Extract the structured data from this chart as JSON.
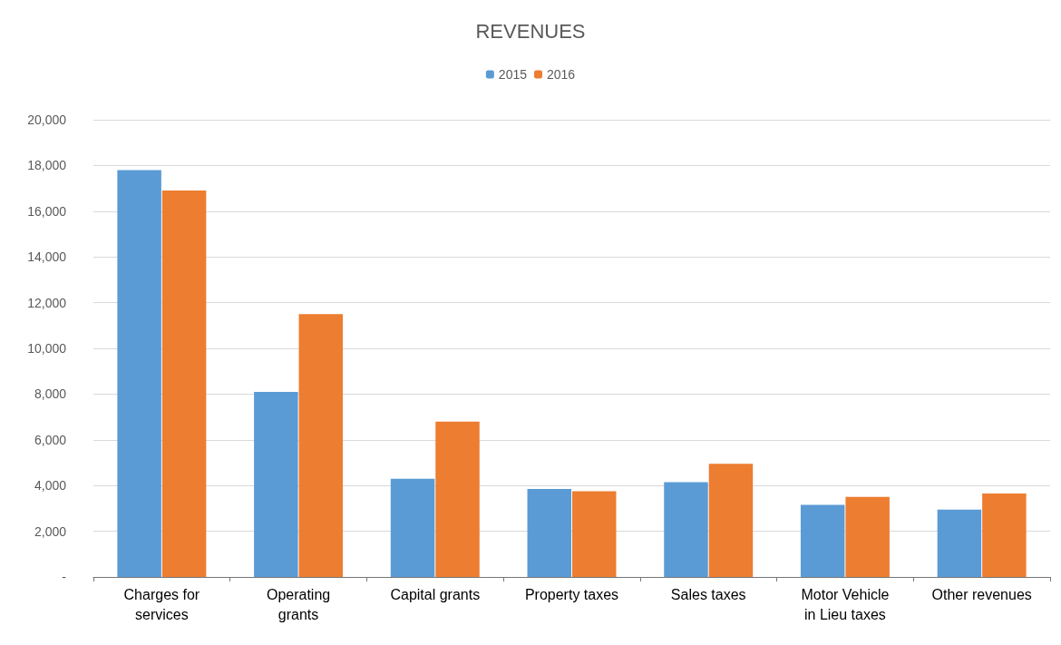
{
  "chart_data": {
    "type": "bar",
    "title": "REVENUES",
    "categories": [
      "Charges for\nservices",
      "Operating\ngrants",
      "Capital grants",
      "Property taxes",
      "Sales taxes",
      "Motor Vehicle\nin Lieu taxes",
      "Other revenues"
    ],
    "series": [
      {
        "name": "2015",
        "color": "#5b9bd5",
        "values": [
          17800,
          8100,
          4300,
          3850,
          4150,
          3150,
          2950
        ]
      },
      {
        "name": "2016",
        "color": "#ed7d31",
        "values": [
          16900,
          11500,
          6800,
          3750,
          4950,
          3500,
          3650
        ]
      }
    ],
    "ylim": [
      0,
      20000
    ],
    "yticks": [
      {
        "value": 0,
        "label": "-"
      },
      {
        "value": 2000,
        "label": "2,000"
      },
      {
        "value": 4000,
        "label": "4,000"
      },
      {
        "value": 6000,
        "label": "6,000"
      },
      {
        "value": 8000,
        "label": "8,000"
      },
      {
        "value": 10000,
        "label": "10,000"
      },
      {
        "value": 12000,
        "label": "12,000"
      },
      {
        "value": 14000,
        "label": "14,000"
      },
      {
        "value": 16000,
        "label": "16,000"
      },
      {
        "value": 18000,
        "label": "18,000"
      },
      {
        "value": 20000,
        "label": "20,000"
      }
    ],
    "grid": "y",
    "legend": "top"
  }
}
